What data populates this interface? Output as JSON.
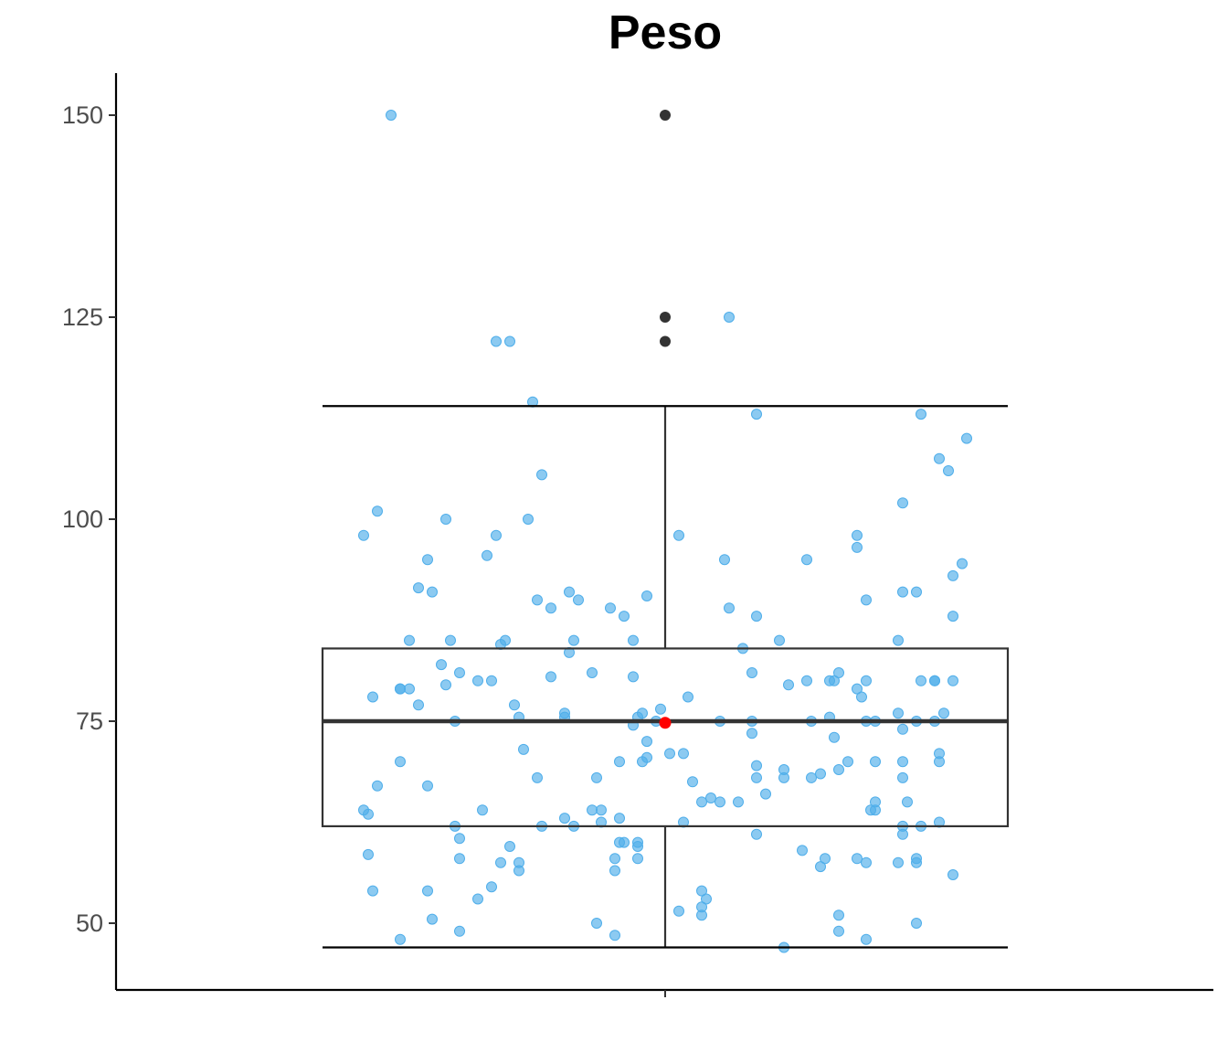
{
  "chart_data": {
    "type": "box",
    "title": "Peso",
    "xlabel": "",
    "ylabel": "",
    "y_ticks": [
      50,
      75,
      100,
      125,
      150
    ],
    "ylim": [
      41.5,
      155
    ],
    "grid": false,
    "legend": "none",
    "colors": {
      "jitter": "#4faeea",
      "box": "#333333",
      "outlier": "#333333",
      "mean": "#ff0000"
    },
    "box": {
      "whisker_low": 47,
      "q1": 62,
      "median": 75,
      "q3": 84,
      "whisker_high": 114,
      "mean": 74.8,
      "outliers": [
        122,
        125,
        150
      ]
    },
    "points": [
      [
        -0.6,
        150
      ],
      [
        -0.37,
        122
      ],
      [
        -0.34,
        122
      ],
      [
        -0.29,
        114.5
      ],
      [
        -0.27,
        105.5
      ],
      [
        -0.63,
        101
      ],
      [
        -0.66,
        98
      ],
      [
        -0.48,
        100
      ],
      [
        -0.3,
        100
      ],
      [
        -0.37,
        98
      ],
      [
        -0.52,
        95
      ],
      [
        -0.39,
        95.5
      ],
      [
        -0.54,
        91.5
      ],
      [
        -0.51,
        91
      ],
      [
        -0.28,
        90
      ],
      [
        -0.25,
        89
      ],
      [
        -0.21,
        91
      ],
      [
        -0.19,
        90
      ],
      [
        -0.12,
        89
      ],
      [
        -0.09,
        88
      ],
      [
        -0.04,
        90.5
      ],
      [
        -0.56,
        85
      ],
      [
        -0.47,
        85
      ],
      [
        -0.36,
        84.5
      ],
      [
        -0.35,
        85
      ],
      [
        -0.2,
        85
      ],
      [
        -0.07,
        85
      ],
      [
        -0.49,
        82
      ],
      [
        -0.45,
        81
      ],
      [
        -0.21,
        83.5
      ],
      [
        -0.16,
        81
      ],
      [
        -0.41,
        80
      ],
      [
        -0.38,
        80
      ],
      [
        -0.25,
        80.5
      ],
      [
        -0.07,
        80.5
      ],
      [
        -0.58,
        79
      ],
      [
        -0.58,
        79
      ],
      [
        -0.56,
        79
      ],
      [
        -0.48,
        79.5
      ],
      [
        -0.64,
        78
      ],
      [
        -0.54,
        77
      ],
      [
        -0.33,
        77
      ],
      [
        -0.22,
        76
      ],
      [
        -0.06,
        75.5
      ],
      [
        -0.05,
        76
      ],
      [
        -0.01,
        76.5
      ],
      [
        -0.46,
        75
      ],
      [
        -0.32,
        75.5
      ],
      [
        -0.22,
        75.5
      ],
      [
        -0.07,
        74.5
      ],
      [
        -0.02,
        75
      ],
      [
        -0.04,
        72.5
      ],
      [
        -0.31,
        71.5
      ],
      [
        -0.58,
        70
      ],
      [
        -0.1,
        70
      ],
      [
        -0.05,
        70
      ],
      [
        -0.04,
        70.5
      ],
      [
        0.01,
        71
      ],
      [
        -0.63,
        67
      ],
      [
        -0.52,
        67
      ],
      [
        -0.28,
        68
      ],
      [
        -0.15,
        68
      ],
      [
        -0.66,
        64
      ],
      [
        -0.65,
        63.5
      ],
      [
        -0.4,
        64
      ],
      [
        -0.22,
        63
      ],
      [
        -0.16,
        64
      ],
      [
        -0.14,
        64
      ],
      [
        -0.1,
        63
      ],
      [
        -0.46,
        62
      ],
      [
        -0.27,
        62
      ],
      [
        -0.2,
        62
      ],
      [
        -0.14,
        62.5
      ],
      [
        -0.45,
        60.5
      ],
      [
        -0.1,
        60
      ],
      [
        -0.09,
        60
      ],
      [
        -0.06,
        60
      ],
      [
        -0.06,
        59.5
      ],
      [
        -0.34,
        59.5
      ],
      [
        -0.65,
        58.5
      ],
      [
        -0.45,
        58
      ],
      [
        -0.36,
        57.5
      ],
      [
        -0.32,
        57.5
      ],
      [
        -0.11,
        58
      ],
      [
        -0.06,
        58
      ],
      [
        -0.64,
        54
      ],
      [
        -0.52,
        54
      ],
      [
        -0.38,
        54.5
      ],
      [
        -0.41,
        53
      ],
      [
        -0.32,
        56.5
      ],
      [
        -0.11,
        56.5
      ],
      [
        -0.51,
        50.5
      ],
      [
        -0.15,
        50
      ],
      [
        -0.58,
        48
      ],
      [
        -0.45,
        49
      ],
      [
        -0.11,
        48.5
      ],
      [
        0.03,
        98
      ],
      [
        0.13,
        95
      ],
      [
        0.14,
        89
      ],
      [
        0.2,
        88
      ],
      [
        0.2,
        113
      ],
      [
        0.14,
        125
      ],
      [
        0.05,
        78
      ],
      [
        0.17,
        84
      ],
      [
        0.19,
        81
      ],
      [
        0.19,
        75
      ],
      [
        0.12,
        75
      ],
      [
        0.19,
        73.5
      ],
      [
        0.2,
        69.5
      ],
      [
        0.2,
        68
      ],
      [
        0.22,
        66
      ],
      [
        0.26,
        69
      ],
      [
        0.26,
        68
      ],
      [
        0.25,
        85
      ],
      [
        0.27,
        79.5
      ],
      [
        0.06,
        67.5
      ],
      [
        0.08,
        65
      ],
      [
        0.1,
        65.5
      ],
      [
        0.12,
        65
      ],
      [
        0.16,
        65
      ],
      [
        0.04,
        71
      ],
      [
        0.04,
        62.5
      ],
      [
        0.2,
        61
      ],
      [
        0.08,
        54
      ],
      [
        0.08,
        52
      ],
      [
        0.09,
        53
      ],
      [
        0.08,
        51
      ],
      [
        0.03,
        51.5
      ],
      [
        0.26,
        47
      ],
      [
        0.31,
        95
      ],
      [
        0.31,
        80
      ],
      [
        0.32,
        75
      ],
      [
        0.36,
        80
      ],
      [
        0.37,
        80
      ],
      [
        0.38,
        81
      ],
      [
        0.35,
        58
      ],
      [
        0.34,
        57
      ],
      [
        0.37,
        73
      ],
      [
        0.38,
        69
      ],
      [
        0.32,
        68
      ],
      [
        0.34,
        68.5
      ],
      [
        0.36,
        75.5
      ],
      [
        0.3,
        59
      ],
      [
        0.38,
        51
      ],
      [
        0.38,
        49
      ],
      [
        0.4,
        70
      ],
      [
        0.42,
        79
      ],
      [
        0.43,
        78
      ],
      [
        0.42,
        98
      ],
      [
        0.42,
        96.5
      ],
      [
        0.44,
        90
      ],
      [
        0.44,
        75
      ],
      [
        0.46,
        75
      ],
      [
        0.46,
        70
      ],
      [
        0.46,
        65
      ],
      [
        0.45,
        64
      ],
      [
        0.46,
        64
      ],
      [
        0.44,
        80
      ],
      [
        0.42,
        58
      ],
      [
        0.44,
        57.5
      ],
      [
        0.44,
        48
      ],
      [
        0.52,
        102
      ],
      [
        0.52,
        91
      ],
      [
        0.55,
        91
      ],
      [
        0.51,
        85
      ],
      [
        0.51,
        76
      ],
      [
        0.52,
        74
      ],
      [
        0.52,
        70
      ],
      [
        0.52,
        68
      ],
      [
        0.53,
        65
      ],
      [
        0.52,
        62
      ],
      [
        0.52,
        61
      ],
      [
        0.51,
        57.5
      ],
      [
        0.55,
        58
      ],
      [
        0.55,
        57.5
      ],
      [
        0.55,
        75
      ],
      [
        0.56,
        80
      ],
      [
        0.56,
        62
      ],
      [
        0.59,
        80
      ],
      [
        0.59,
        80
      ],
      [
        0.59,
        75
      ],
      [
        0.6,
        70
      ],
      [
        0.6,
        71
      ],
      [
        0.6,
        62.5
      ],
      [
        0.61,
        76
      ],
      [
        0.63,
        80
      ],
      [
        0.55,
        50
      ],
      [
        0.56,
        113
      ],
      [
        0.6,
        107.5
      ],
      [
        0.62,
        106
      ],
      [
        0.66,
        110
      ],
      [
        0.63,
        93
      ],
      [
        0.65,
        94.5
      ],
      [
        0.63,
        88
      ],
      [
        0.63,
        56
      ]
    ]
  }
}
